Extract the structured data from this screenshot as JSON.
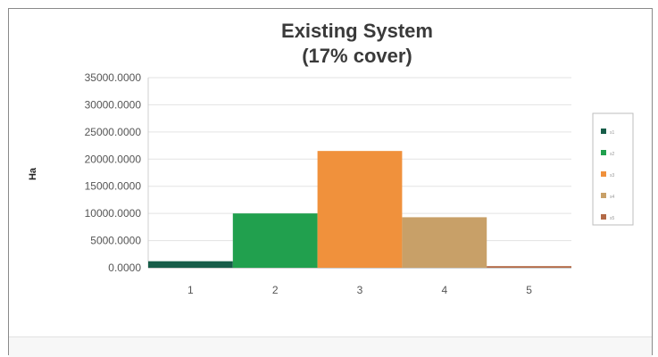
{
  "chart_data": {
    "type": "bar",
    "title": "Existing System",
    "subtitle": "(17% cover)",
    "ylabel": "Ha",
    "xlabel": "",
    "categories": [
      "1",
      "2",
      "3",
      "4",
      "5"
    ],
    "values": [
      1200,
      10000,
      21500,
      9300,
      300
    ],
    "colors": [
      "#175d49",
      "#21a04e",
      "#f0913c",
      "#c8a068",
      "#b36a47"
    ],
    "ylim": [
      0,
      35000
    ],
    "yticks": [
      "0.0000",
      "5000.0000",
      "10000.0000",
      "15000.0000",
      "20000.0000",
      "25000.0000",
      "30000.0000",
      "35000.0000"
    ],
    "legend_placement": "right",
    "legend": [
      "s1",
      "s2",
      "s3",
      "s4",
      "s5"
    ],
    "grid": true
  }
}
